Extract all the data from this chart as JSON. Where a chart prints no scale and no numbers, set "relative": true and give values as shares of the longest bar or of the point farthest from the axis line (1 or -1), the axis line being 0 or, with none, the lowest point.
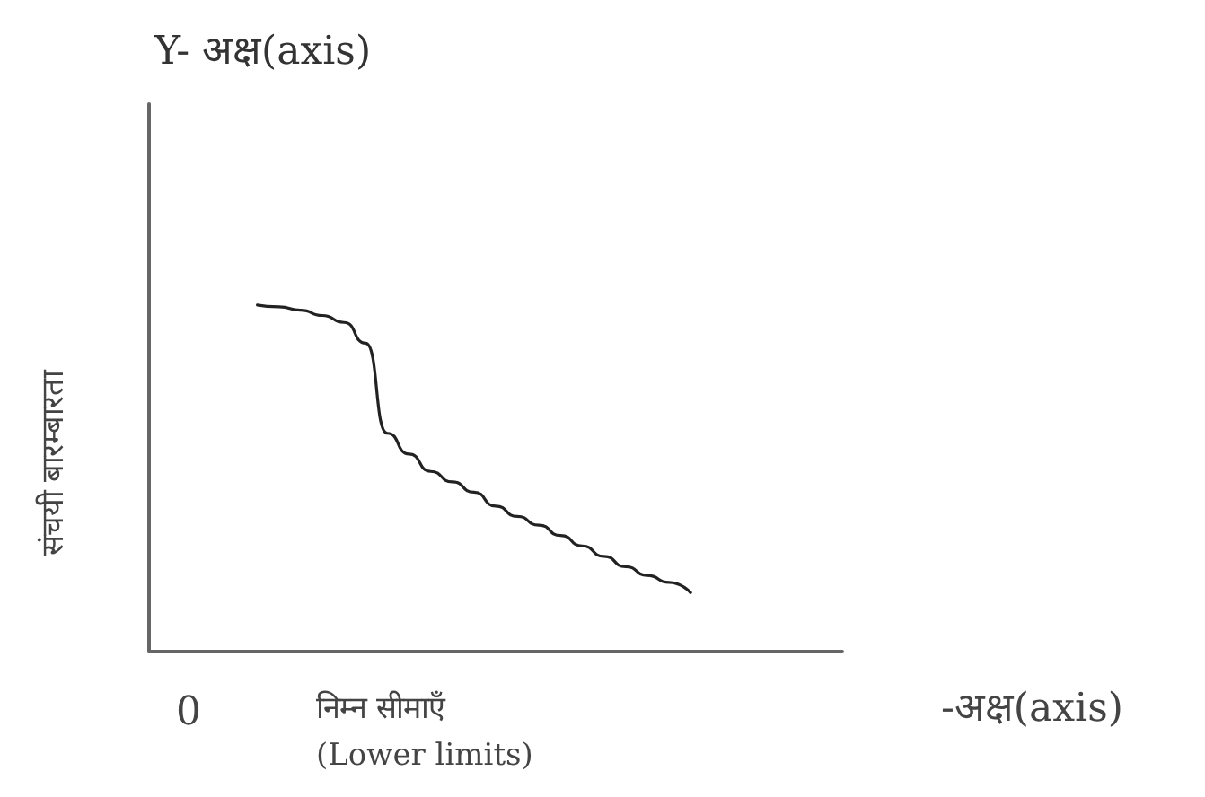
{
  "chart_data": {
    "type": "line",
    "relative": true,
    "title": "Y- अक्ष(axis)",
    "ylabel": "संचयी बारम्बारता",
    "xlabel": "निम्न सीमाएँ\n(Lower limits)",
    "annotations": [
      "0",
      "-अक्ष(axis)"
    ],
    "categories": [
      null,
      null,
      null,
      null,
      null,
      null,
      null,
      null,
      null,
      null,
      null,
      null,
      null,
      null,
      null,
      null,
      null,
      null,
      null,
      null,
      null,
      null,
      null,
      null,
      null,
      null,
      null,
      null,
      null,
      null,
      null,
      null,
      null
    ],
    "series": [
      {
        "color": "#222222",
        "values": [
          null,
          null,
          null,
          null,
          null,
          1.0,
          0.995,
          0.985,
          0.97,
          0.95,
          0.89,
          0.63,
          0.57,
          0.52,
          0.49,
          0.46,
          0.42,
          0.39,
          0.365,
          0.335,
          0.305,
          0.275,
          0.245,
          0.22,
          0.2,
          0.17,
          null,
          null,
          null,
          null,
          null,
          null,
          null
        ]
      }
    ],
    "grid": false,
    "marker": "none",
    "line_style": "solid"
  }
}
